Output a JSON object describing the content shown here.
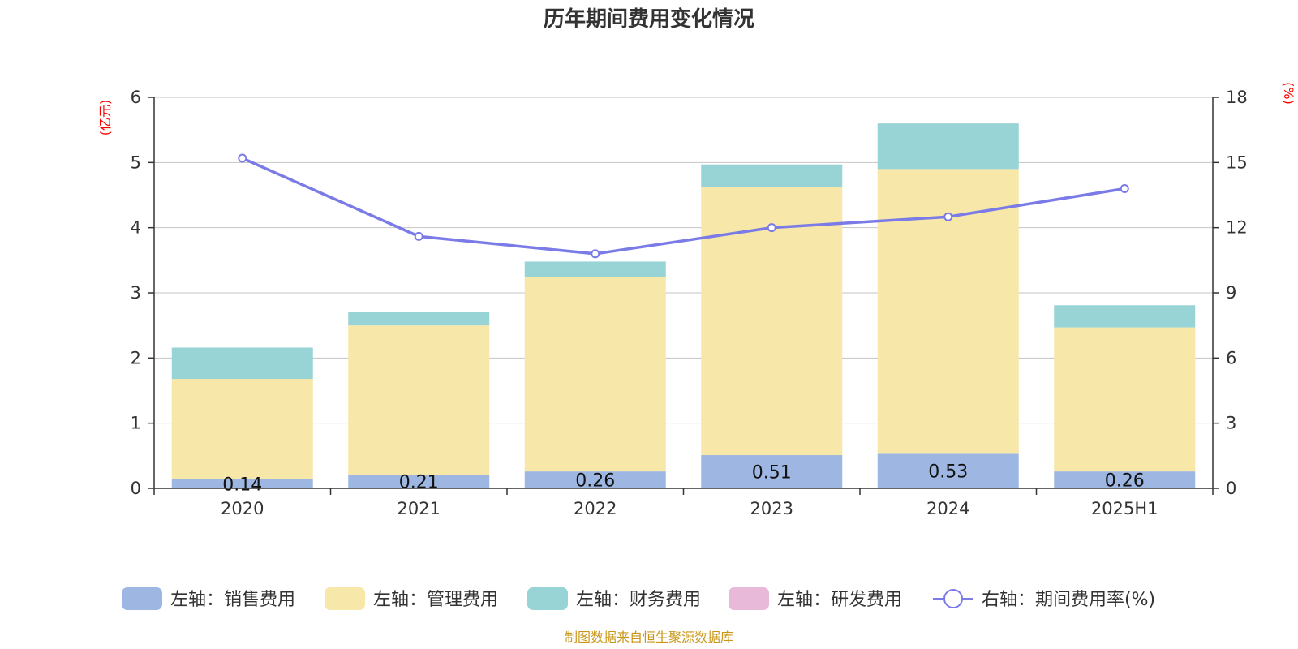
{
  "chart_data": {
    "type": "bar",
    "title": "历年期间费用变化情况",
    "categories": [
      "2020",
      "2021",
      "2022",
      "2023",
      "2024",
      "2025H1"
    ],
    "series": [
      {
        "name": "左轴：销售费用",
        "kind": "bar",
        "axis": "left",
        "color": "#9db7e2",
        "values": [
          0.14,
          0.21,
          0.26,
          0.51,
          0.53,
          0.26
        ],
        "labels": [
          "0.14",
          "0.21",
          "0.26",
          "0.51",
          "0.53",
          "0.26"
        ]
      },
      {
        "name": "左轴：管理费用",
        "kind": "bar",
        "axis": "left",
        "color": "#f7e7a9",
        "values": [
          1.54,
          2.29,
          2.98,
          4.12,
          4.37,
          2.21
        ]
      },
      {
        "name": "左轴：财务费用",
        "kind": "bar",
        "axis": "left",
        "color": "#98d4d5",
        "values": [
          0.48,
          0.21,
          0.24,
          0.34,
          0.7,
          0.34
        ]
      },
      {
        "name": "左轴：研发费用",
        "kind": "bar",
        "axis": "left",
        "color": "#e9b9d9",
        "values": [
          0,
          0,
          0,
          0,
          0,
          0
        ]
      },
      {
        "name": "右轴：期间费用率(%)",
        "kind": "line",
        "axis": "right",
        "color": "#7b7be8",
        "values": [
          15.2,
          11.6,
          10.8,
          12.0,
          12.5,
          13.8
        ]
      }
    ],
    "left_axis": {
      "unit": "(亿元)",
      "range": [
        0,
        6
      ],
      "ticks": [
        "0",
        "1",
        "2",
        "3",
        "4",
        "5",
        "6"
      ]
    },
    "right_axis": {
      "unit": "(%)",
      "range": [
        0,
        18
      ],
      "ticks": [
        "0",
        "3",
        "6",
        "9",
        "12",
        "15",
        "18"
      ]
    },
    "grid": true,
    "legend_position": "bottom"
  },
  "source_note": "制图数据来自恒生聚源数据库"
}
